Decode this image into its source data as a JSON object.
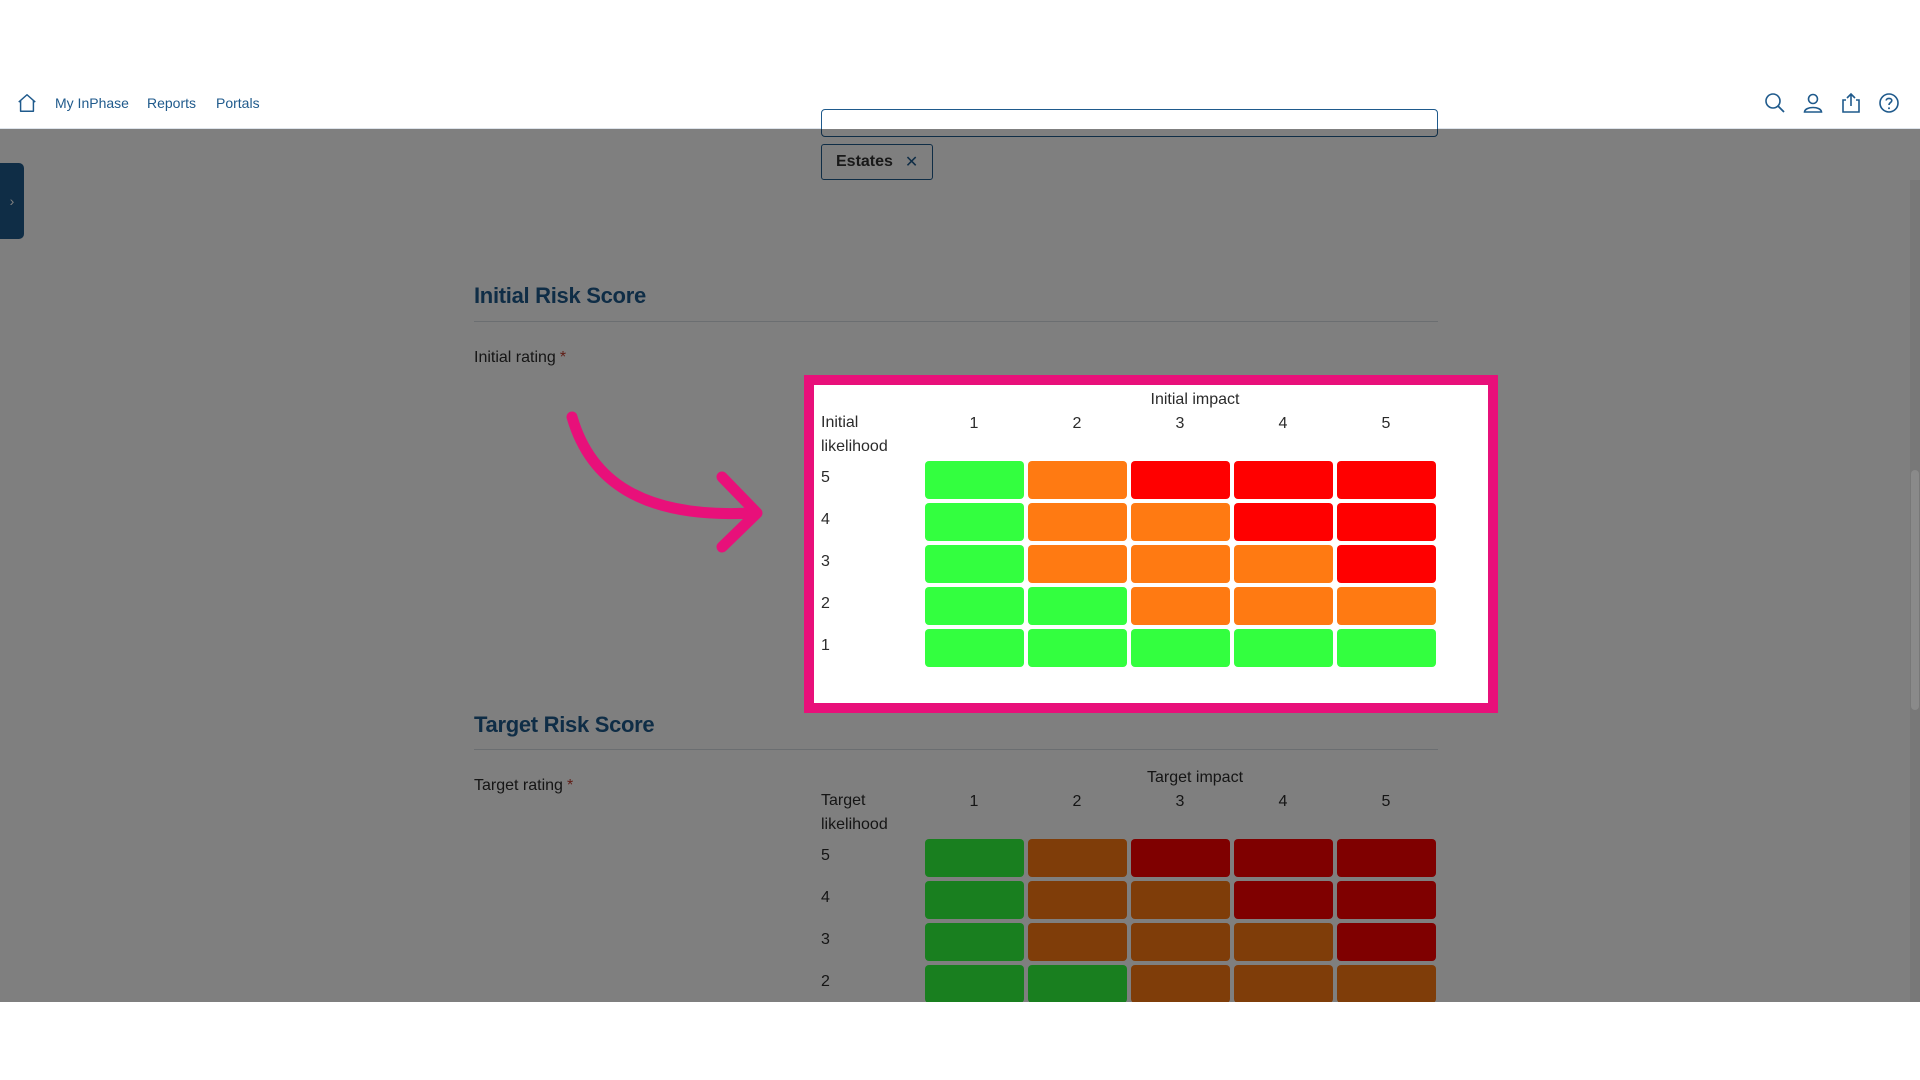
{
  "nav": {
    "items": [
      "My InPhase",
      "Reports",
      "Portals"
    ]
  },
  "tag": {
    "label": "Estates",
    "remove": "✕"
  },
  "sidebar_toggle": {
    "label": "›"
  },
  "initial": {
    "section_title": "Initial Risk Score",
    "field_label": "Initial rating",
    "required": "*",
    "impact_title": "Initial impact",
    "likelihood_label": "Initial likelihood",
    "columns": [
      "1",
      "2",
      "3",
      "4",
      "5"
    ],
    "rows": [
      "5",
      "4",
      "3",
      "2",
      "1"
    ],
    "cells": [
      [
        "green",
        "orange",
        "red",
        "red",
        "red"
      ],
      [
        "green",
        "orange",
        "orange",
        "red",
        "red"
      ],
      [
        "green",
        "orange",
        "orange",
        "orange",
        "red"
      ],
      [
        "green",
        "green",
        "orange",
        "orange",
        "orange"
      ],
      [
        "green",
        "green",
        "green",
        "green",
        "green"
      ]
    ]
  },
  "target": {
    "section_title": "Target Risk Score",
    "field_label": "Target rating",
    "required": "*",
    "impact_title": "Target impact",
    "likelihood_label": "Target likelihood",
    "columns": [
      "1",
      "2",
      "3",
      "4",
      "5"
    ],
    "rows": [
      "5",
      "4",
      "3",
      "2"
    ],
    "cells": [
      [
        "green",
        "orange",
        "red",
        "red",
        "red"
      ],
      [
        "green",
        "orange",
        "orange",
        "red",
        "red"
      ],
      [
        "green",
        "orange",
        "orange",
        "orange",
        "red"
      ],
      [
        "green",
        "green",
        "orange",
        "orange",
        "orange"
      ]
    ]
  },
  "colors": {
    "green": "#33ff3f",
    "orange": "#ff7a12",
    "red": "#ff0000",
    "highlight": "#e8107a",
    "accent": "#1f5a8c"
  },
  "icons": {
    "home": "home-icon",
    "search": "search-icon",
    "user": "user-icon",
    "share": "share-icon",
    "help": "help-icon",
    "arrow": "curved-arrow-annotation"
  }
}
